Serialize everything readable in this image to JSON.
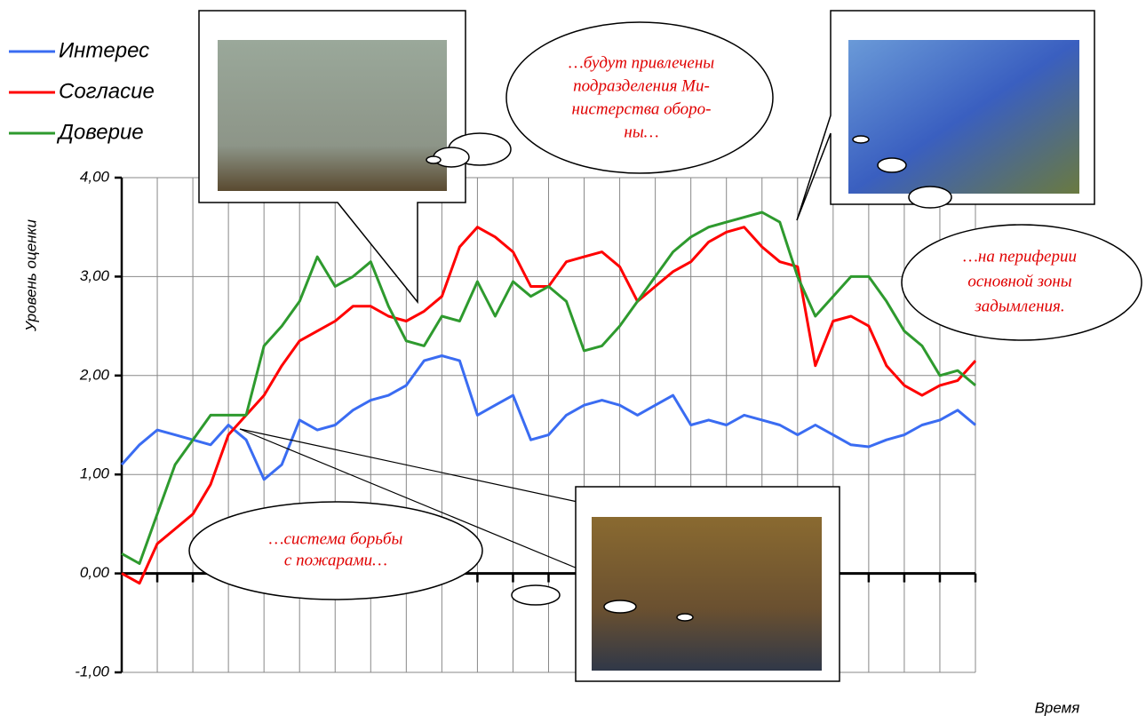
{
  "chart_data": {
    "type": "line",
    "ylabel": "Уровень оценки",
    "xlabel": "Время",
    "ylim": [
      -1,
      4
    ],
    "yticks": [
      {
        "value": -1,
        "label": "-1,00"
      },
      {
        "value": 0,
        "label": "0,00"
      },
      {
        "value": 1,
        "label": "1,00"
      },
      {
        "value": 2,
        "label": "2,00"
      },
      {
        "value": 3,
        "label": "3,00"
      },
      {
        "value": 4,
        "label": "4,00"
      }
    ],
    "grid": true,
    "legend": "top-left",
    "series": [
      {
        "name": "Интерес",
        "color": "#3a6cf2",
        "values": [
          1.1,
          1.3,
          1.45,
          1.4,
          1.35,
          1.3,
          1.5,
          1.35,
          0.95,
          1.1,
          1.55,
          1.45,
          1.5,
          1.65,
          1.75,
          1.8,
          1.9,
          2.15,
          2.2,
          2.15,
          1.6,
          1.7,
          1.8,
          1.35,
          1.4,
          1.6,
          1.7,
          1.75,
          1.7,
          1.6,
          1.7,
          1.8,
          1.5,
          1.55,
          1.5,
          1.6,
          1.55,
          1.5,
          1.4,
          1.5,
          1.4,
          1.3,
          1.28,
          1.35,
          1.4,
          1.5,
          1.55,
          1.65,
          1.5
        ]
      },
      {
        "name": "Согласие",
        "color": "#ff0000",
        "values": [
          0,
          -0.1,
          0.3,
          0.45,
          0.6,
          0.9,
          1.4,
          1.6,
          1.8,
          2.1,
          2.35,
          2.45,
          2.55,
          2.7,
          2.7,
          2.6,
          2.55,
          2.65,
          2.8,
          3.3,
          3.5,
          3.4,
          3.25,
          2.9,
          2.9,
          3.15,
          3.2,
          3.25,
          3.1,
          2.75,
          2.9,
          3.05,
          3.15,
          3.35,
          3.45,
          3.5,
          3.3,
          3.15,
          3.1,
          2.1,
          2.55,
          2.6,
          2.5,
          2.1,
          1.9,
          1.8,
          1.9,
          1.95,
          2.15
        ]
      },
      {
        "name": "Доверие",
        "color": "#2e9a2e",
        "values": [
          0.2,
          0.1,
          0.6,
          1.1,
          1.35,
          1.6,
          1.6,
          1.6,
          2.3,
          2.5,
          2.75,
          3.2,
          2.9,
          3.0,
          3.15,
          2.7,
          2.35,
          2.3,
          2.6,
          2.55,
          2.95,
          2.6,
          2.95,
          2.8,
          2.9,
          2.75,
          2.25,
          2.3,
          2.5,
          2.75,
          3.0,
          3.25,
          3.4,
          3.5,
          3.55,
          3.6,
          3.65,
          3.55,
          3.0,
          2.6,
          2.8,
          3.0,
          3.0,
          2.75,
          2.45,
          2.3,
          2.0,
          2.05,
          1.9
        ]
      }
    ],
    "annotations": [
      {
        "lines": [
          "…будут привлечены",
          "подразделения Ми-",
          "нистерства оборо-",
          "ны…"
        ]
      },
      {
        "lines": [
          "…на периферии",
          "основной зоны",
          "задымления."
        ]
      },
      {
        "lines": [
          "…система борьбы",
          "с пожарами…"
        ]
      }
    ]
  }
}
